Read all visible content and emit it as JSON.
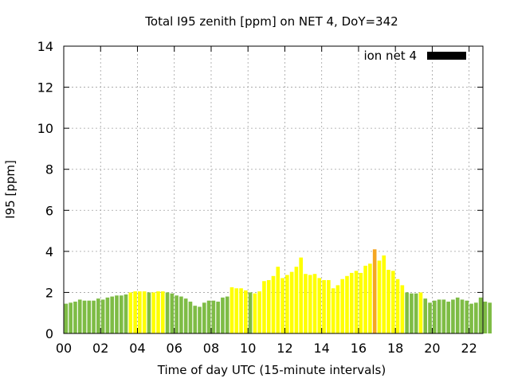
{
  "chart_data": {
    "type": "bar",
    "title": "Total I95 zenith [ppm] on NET 4, DoY=342",
    "xlabel": "Time of day UTC (15-minute intervals)",
    "ylabel": "I95 [ppm]",
    "ylim": [
      0,
      14
    ],
    "xlim": [
      0,
      22.75
    ],
    "yticks": [
      0,
      2,
      4,
      6,
      8,
      10,
      12,
      14
    ],
    "ytick_labels": [
      "0",
      "2",
      "4",
      "6",
      "8",
      "10",
      "12",
      "14"
    ],
    "xticks": [
      0,
      2,
      4,
      6,
      8,
      10,
      12,
      14,
      16,
      18,
      20,
      22
    ],
    "xtick_labels": [
      "00",
      "02",
      "04",
      "06",
      "08",
      "10",
      "12",
      "14",
      "16",
      "18",
      "20",
      "22"
    ],
    "grid": true,
    "legend": {
      "label": "ion net 4",
      "color": "#000000",
      "position": "top-right"
    },
    "interval_hours": 0.25,
    "bar_width_hours": 0.2,
    "colors": {
      "green": "#7ebc45",
      "yellow": "#ffff00",
      "orange": "#f5a623"
    },
    "values": [
      1.45,
      1.5,
      1.55,
      1.65,
      1.6,
      1.6,
      1.6,
      1.7,
      1.65,
      1.75,
      1.8,
      1.85,
      1.85,
      1.9,
      2.0,
      2.05,
      2.05,
      2.05,
      2.0,
      2.0,
      2.05,
      2.05,
      2.0,
      1.95,
      1.85,
      1.8,
      1.7,
      1.55,
      1.35,
      1.3,
      1.5,
      1.6,
      1.6,
      1.55,
      1.75,
      1.8,
      2.25,
      2.2,
      2.2,
      2.1,
      2.0,
      1.95,
      2.05,
      2.55,
      2.6,
      2.8,
      3.25,
      2.7,
      2.85,
      3.0,
      3.25,
      3.7,
      2.9,
      2.85,
      2.9,
      2.7,
      2.6,
      2.6,
      2.2,
      2.35,
      2.65,
      2.8,
      2.95,
      3.05,
      2.95,
      3.3,
      3.4,
      4.1,
      3.55,
      3.8,
      3.1,
      3.05,
      2.65,
      2.35,
      2.0,
      1.95,
      1.95,
      2.0,
      1.7,
      1.5,
      1.6,
      1.65,
      1.65,
      1.55,
      1.65,
      1.75,
      1.65,
      1.6,
      1.45,
      1.5,
      1.75,
      1.55,
      1.5
    ],
    "bar_colors": [
      "green",
      "green",
      "green",
      "green",
      "green",
      "green",
      "green",
      "green",
      "green",
      "green",
      "green",
      "green",
      "green",
      "green",
      "yellow",
      "yellow",
      "yellow",
      "yellow",
      "green",
      "yellow",
      "yellow",
      "yellow",
      "green",
      "green",
      "green",
      "green",
      "green",
      "green",
      "green",
      "green",
      "green",
      "green",
      "green",
      "green",
      "green",
      "green",
      "yellow",
      "yellow",
      "yellow",
      "yellow",
      "green",
      "yellow",
      "yellow",
      "yellow",
      "yellow",
      "yellow",
      "yellow",
      "yellow",
      "yellow",
      "yellow",
      "yellow",
      "yellow",
      "yellow",
      "yellow",
      "yellow",
      "yellow",
      "yellow",
      "yellow",
      "yellow",
      "yellow",
      "yellow",
      "yellow",
      "yellow",
      "yellow",
      "yellow",
      "yellow",
      "yellow",
      "orange",
      "yellow",
      "yellow",
      "yellow",
      "yellow",
      "yellow",
      "yellow",
      "green",
      "green",
      "green",
      "yellow",
      "green",
      "green",
      "green",
      "green",
      "green",
      "green",
      "green",
      "green",
      "green",
      "green",
      "green",
      "green",
      "green",
      "green",
      "green"
    ]
  }
}
